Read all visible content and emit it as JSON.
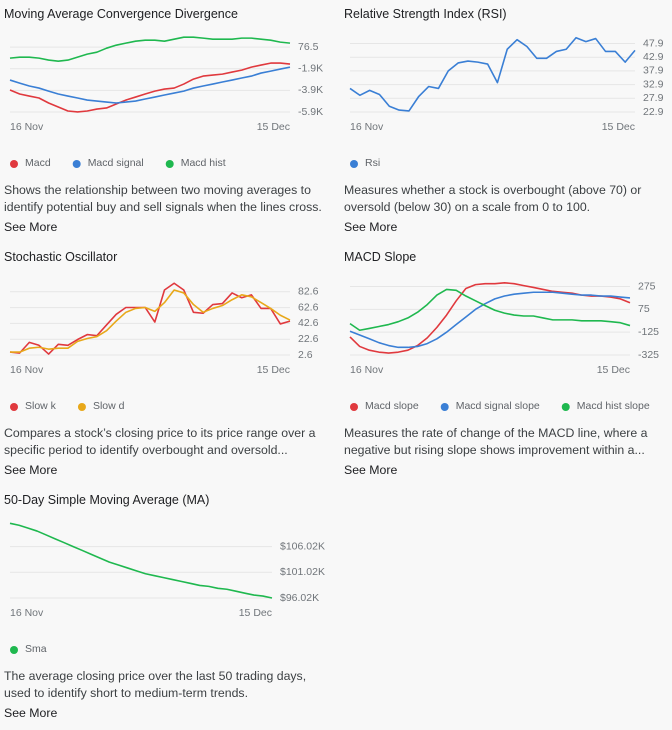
{
  "chart_data": [
    {
      "type": "line",
      "title": "Moving Average Convergence Divergence",
      "categories": [
        "16 Nov",
        null,
        null,
        null,
        null,
        null,
        null,
        null,
        null,
        null,
        null,
        null,
        null,
        null,
        null,
        null,
        null,
        null,
        null,
        null,
        null,
        null,
        null,
        null,
        null,
        null,
        null,
        null,
        null,
        "15 Dec"
      ],
      "series": [
        {
          "name": "Macd",
          "color": "#e0393e",
          "values": [
            -3890,
            -4260,
            -4450,
            -4630,
            -5090,
            -5460,
            -5830,
            -5920,
            -5830,
            -5650,
            -5550,
            -5180,
            -4820,
            -4540,
            -4260,
            -3990,
            -3800,
            -3710,
            -3340,
            -2880,
            -2600,
            -2510,
            -2420,
            -2230,
            -2050,
            -1770,
            -1580,
            -1400,
            -1400,
            -1490
          ]
        },
        {
          "name": "Macd signal",
          "color": "#3a7fd5",
          "values": [
            -2970,
            -3250,
            -3520,
            -3710,
            -3990,
            -4260,
            -4450,
            -4630,
            -4820,
            -4910,
            -5000,
            -5090,
            -5000,
            -4910,
            -4720,
            -4540,
            -4350,
            -4170,
            -3990,
            -3710,
            -3520,
            -3340,
            -3150,
            -2970,
            -2780,
            -2600,
            -2320,
            -2140,
            -1950,
            -1770
          ]
        },
        {
          "name": "Macd hist",
          "color": "#1fb84f",
          "values": [
            -940,
            -850,
            -850,
            -940,
            -1120,
            -1220,
            -1120,
            -850,
            -570,
            -390,
            -20,
            260,
            450,
            630,
            720,
            720,
            630,
            815,
            1000,
            1000,
            910,
            815,
            815,
            815,
            910,
            910,
            815,
            720,
            540,
            450
          ]
        }
      ],
      "ylim": [
        -5923.5,
        1200
      ],
      "yticks": [
        76.5,
        {
          "value": -1923.5,
          "label": "-1.9K"
        },
        {
          "value": -3923.5,
          "label": "-3.9K"
        },
        {
          "value": -5923.5,
          "label": "-5.9K"
        }
      ],
      "grid": true,
      "description": "Shows the relationship between two moving averages to identify potential buy and sell signals when the lines cross.",
      "link": "See More"
    },
    {
      "type": "line",
      "title": "Relative Strength Index (RSI)",
      "categories": [
        "16 Nov",
        null,
        null,
        null,
        null,
        null,
        null,
        null,
        null,
        null,
        null,
        null,
        null,
        null,
        null,
        null,
        null,
        null,
        null,
        null,
        null,
        null,
        null,
        null,
        null,
        null,
        null,
        null,
        null,
        "15 Dec"
      ],
      "series": [
        {
          "name": "Rsi",
          "color": "#3a7fd5",
          "values": [
            31.5,
            29.0,
            30.8,
            29.3,
            25.0,
            23.6,
            23.3,
            28.6,
            32.2,
            31.5,
            37.9,
            40.8,
            41.5,
            41.1,
            40.4,
            33.6,
            45.8,
            49.3,
            46.8,
            42.5,
            42.5,
            45.0,
            45.8,
            50.0,
            48.6,
            49.7,
            45.0,
            45.0,
            41.1,
            45.4
          ]
        }
      ],
      "ylim": [
        22.9,
        51
      ],
      "yticks": [
        47.9,
        42.9,
        37.9,
        32.9,
        27.9,
        22.9
      ],
      "grid": true,
      "description": "Measures whether a stock is overbought (above 70) or oversold (below 30) on a scale from 0 to 100.",
      "link": "See More"
    },
    {
      "type": "line",
      "title": "Stochastic Oscillator",
      "categories": [
        "16 Nov",
        null,
        null,
        null,
        null,
        null,
        null,
        null,
        null,
        null,
        null,
        null,
        null,
        null,
        null,
        null,
        null,
        null,
        null,
        null,
        null,
        null,
        null,
        null,
        null,
        null,
        null,
        null,
        null,
        "15 Dec"
      ],
      "series": [
        {
          "name": "Slow k",
          "color": "#e0393e",
          "values": [
            6.3,
            5.1,
            18.6,
            14.9,
            3.8,
            16.1,
            14.9,
            22.2,
            28.4,
            27.1,
            40.6,
            54.1,
            62.7,
            62.7,
            62.7,
            44.3,
            84.8,
            93.4,
            84.8,
            56.6,
            55.4,
            66.4,
            67.7,
            81.1,
            75.0,
            78.7,
            61.5,
            61.5,
            41.9,
            45.5
          ]
        },
        {
          "name": "Slow d",
          "color": "#e8a81a",
          "values": [
            6.3,
            6.3,
            11.2,
            12.4,
            10.0,
            11.2,
            11.2,
            19.8,
            23.5,
            25.9,
            33.3,
            45.5,
            56.6,
            61.5,
            62.7,
            57.8,
            68.9,
            84.8,
            81.1,
            66.4,
            56.6,
            61.5,
            65.2,
            72.5,
            78.7,
            76.2,
            68.9,
            61.5,
            52.9,
            46.8
          ]
        }
      ],
      "ylim": [
        2.6,
        100
      ],
      "yticks": [
        82.6,
        62.6,
        42.6,
        22.6,
        2.6
      ],
      "grid": true,
      "description": "Compares a stock’s closing price to its price range over a specific period to identify overbought and oversold...",
      "link": "See More"
    },
    {
      "type": "line",
      "title": "MACD Slope",
      "categories": [
        "16 Nov",
        null,
        null,
        null,
        null,
        null,
        null,
        null,
        null,
        null,
        null,
        null,
        null,
        null,
        null,
        null,
        null,
        null,
        null,
        null,
        null,
        null,
        null,
        null,
        null,
        null,
        null,
        null,
        null,
        "15 Dec"
      ],
      "series": [
        {
          "name": "Macd slope",
          "color": "#e0393e",
          "values": [
            -167,
            -250,
            -283,
            -300,
            -308,
            -300,
            -283,
            -242,
            -175,
            -83,
            25,
            150,
            258,
            292,
            300,
            300,
            308,
            300,
            283,
            267,
            250,
            233,
            225,
            217,
            200,
            192,
            192,
            183,
            167,
            133
          ]
        },
        {
          "name": "Macd signal slope",
          "color": "#3a7fd5",
          "values": [
            -117,
            -150,
            -183,
            -217,
            -242,
            -258,
            -258,
            -250,
            -225,
            -183,
            -125,
            -58,
            8,
            75,
            125,
            167,
            192,
            208,
            217,
            225,
            225,
            225,
            217,
            208,
            200,
            200,
            192,
            192,
            183,
            175
          ]
        },
        {
          "name": "Macd hist slope",
          "color": "#1fb84f",
          "values": [
            -50,
            -108,
            -92,
            -75,
            -58,
            -33,
            0,
            50,
            117,
            200,
            250,
            242,
            192,
            150,
            108,
            67,
            42,
            25,
            17,
            17,
            0,
            -17,
            -17,
            -17,
            -25,
            -25,
            -25,
            -33,
            -42,
            -67
          ]
        }
      ],
      "ylim": [
        -325,
        350
      ],
      "yticks": [
        275,
        75,
        -125,
        -325
      ],
      "grid": true,
      "description": "Measures the rate of change of the MACD line, where a negative but rising slope shows improvement within a...",
      "link": "See More"
    },
    {
      "type": "line",
      "title": "50-Day Simple Moving Average (MA)",
      "categories": [
        "16 Nov",
        null,
        null,
        null,
        null,
        null,
        null,
        null,
        null,
        null,
        null,
        null,
        null,
        null,
        null,
        null,
        null,
        null,
        null,
        null,
        null,
        null,
        null,
        null,
        null,
        null,
        null,
        null,
        null,
        "15 Dec"
      ],
      "series": [
        {
          "name": "Sma",
          "color": "#1fb84f",
          "values": [
            110550,
            110170,
            109610,
            109040,
            108290,
            107530,
            106780,
            106020,
            105270,
            104510,
            103760,
            103000,
            102440,
            101870,
            101300,
            100740,
            100360,
            99980,
            99610,
            99230,
            98850,
            98470,
            98280,
            97910,
            97720,
            97340,
            96960,
            96590,
            96400,
            96020
          ]
        }
      ],
      "ylim": [
        96020,
        111000
      ],
      "yticks": [
        {
          "value": 106020,
          "label": "$106.02K"
        },
        {
          "value": 101020,
          "label": "$101.02K"
        },
        {
          "value": 96020,
          "label": "$96.02K"
        }
      ],
      "grid": true,
      "description": "The average closing price over the last 50 trading days, used to identify short to medium-term trends.",
      "link": "See More"
    }
  ]
}
